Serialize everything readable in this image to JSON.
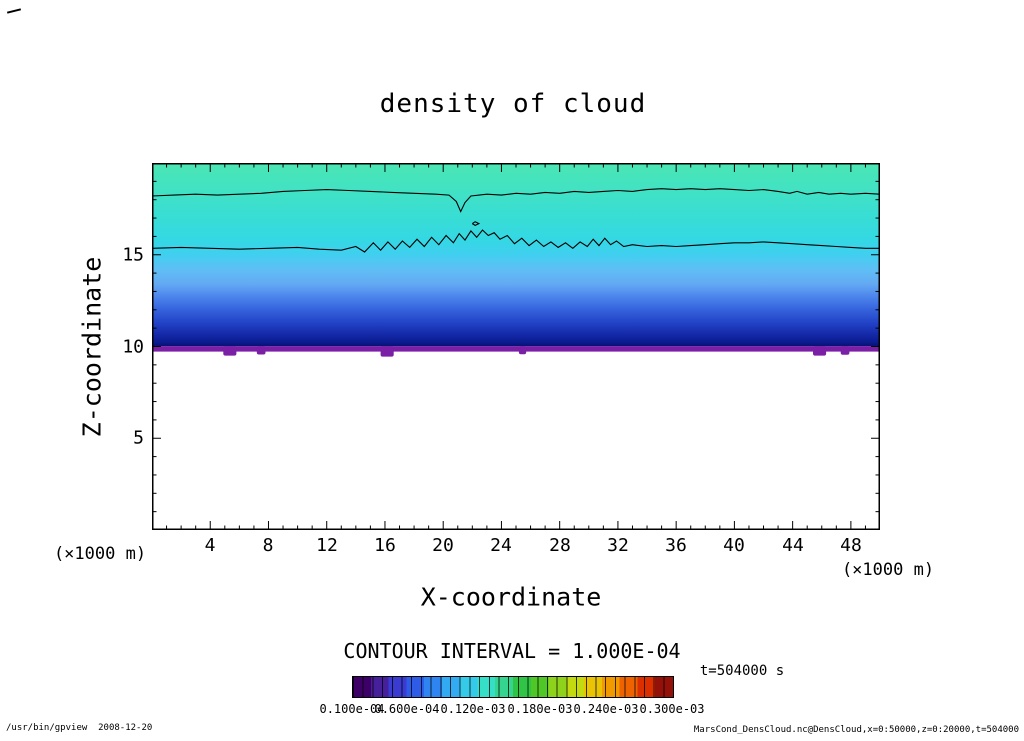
{
  "chart_data": {
    "type": "heatmap",
    "title": "density of cloud",
    "xlabel": "X-coordinate",
    "ylabel": "Z-coordinate",
    "x_unit_left": "(×1000 m)",
    "x_unit_right": "(×1000 m)",
    "contour_interval_text": "CONTOUR INTERVAL = 1.000E-04",
    "time_label": "t=504000 s",
    "axes": {
      "xlim": [
        0,
        50
      ],
      "zlim": [
        0,
        20
      ],
      "x_major_ticks": [
        4,
        8,
        12,
        16,
        20,
        24,
        28,
        32,
        36,
        40,
        44,
        48
      ],
      "x_tick_labels": [
        "4",
        "8",
        "12",
        "16",
        "20",
        "24",
        "28",
        "32",
        "36",
        "40",
        "44",
        "48"
      ],
      "x_minor_step": 1,
      "y_major_ticks": [
        5,
        10,
        15
      ],
      "y_tick_labels": [
        "5",
        "10",
        "15"
      ],
      "y_minor_step": 1,
      "grid": false
    },
    "field": {
      "description": "cloud density fill; colored cloud layer spans z≈9.7–20 (×1000 m) over full x range 0–50, white (no cloud) below",
      "gradient_stops": [
        {
          "z": 20.0,
          "color": "#4BE6B4"
        },
        {
          "z": 18.5,
          "color": "#41E2C4"
        },
        {
          "z": 17.0,
          "color": "#38DDD5"
        },
        {
          "z": 15.8,
          "color": "#34D8E4"
        },
        {
          "z": 15.0,
          "color": "#41CFF0"
        },
        {
          "z": 14.2,
          "color": "#5FBFF5"
        },
        {
          "z": 13.4,
          "color": "#64A9F3"
        },
        {
          "z": 12.7,
          "color": "#4B84EB"
        },
        {
          "z": 12.0,
          "color": "#3562DD"
        },
        {
          "z": 11.3,
          "color": "#2243C6"
        },
        {
          "z": 10.7,
          "color": "#152BAB"
        },
        {
          "z": 10.25,
          "color": "#0C1B90"
        },
        {
          "z": 10.02,
          "color": "#081274"
        }
      ],
      "base_band": {
        "z_top": 10.02,
        "z_bottom": 9.72,
        "color": "#7A1FA6",
        "blobs": [
          {
            "x0": 4.9,
            "x1": 5.8,
            "zb": 9.5
          },
          {
            "x0": 7.2,
            "x1": 7.8,
            "zb": 9.56
          },
          {
            "x0": 15.7,
            "x1": 16.6,
            "zb": 9.45
          },
          {
            "x0": 25.2,
            "x1": 25.7,
            "zb": 9.58
          },
          {
            "x0": 45.4,
            "x1": 46.3,
            "zb": 9.5
          },
          {
            "x0": 47.3,
            "x1": 47.9,
            "zb": 9.55
          }
        ]
      }
    },
    "contours": {
      "interval": 0.0001,
      "lines": [
        {
          "name": "upper",
          "points_xz": [
            [
              0,
              18.2
            ],
            [
              1.5,
              18.25
            ],
            [
              3,
              18.3
            ],
            [
              4.5,
              18.25
            ],
            [
              6,
              18.3
            ],
            [
              7.5,
              18.35
            ],
            [
              9,
              18.45
            ],
            [
              10.5,
              18.5
            ],
            [
              12,
              18.55
            ],
            [
              13.5,
              18.5
            ],
            [
              15,
              18.45
            ],
            [
              16.5,
              18.4
            ],
            [
              18,
              18.35
            ],
            [
              19.5,
              18.3
            ],
            [
              20.4,
              18.25
            ],
            [
              20.9,
              17.9
            ],
            [
              21.2,
              17.35
            ],
            [
              21.5,
              17.85
            ],
            [
              21.9,
              18.2
            ],
            [
              23,
              18.3
            ],
            [
              24,
              18.25
            ],
            [
              25,
              18.35
            ],
            [
              26,
              18.3
            ],
            [
              27,
              18.4
            ],
            [
              28,
              18.35
            ],
            [
              29,
              18.45
            ],
            [
              30,
              18.4
            ],
            [
              31,
              18.45
            ],
            [
              32,
              18.5
            ],
            [
              33,
              18.45
            ],
            [
              34,
              18.55
            ],
            [
              35,
              18.6
            ],
            [
              36,
              18.55
            ],
            [
              37,
              18.6
            ],
            [
              38,
              18.55
            ],
            [
              39,
              18.6
            ],
            [
              40,
              18.55
            ],
            [
              41,
              18.5
            ],
            [
              42,
              18.55
            ],
            [
              43,
              18.45
            ],
            [
              43.8,
              18.35
            ],
            [
              44.3,
              18.45
            ],
            [
              45,
              18.3
            ],
            [
              45.8,
              18.4
            ],
            [
              46.5,
              18.3
            ],
            [
              47.3,
              18.35
            ],
            [
              48,
              18.3
            ],
            [
              49,
              18.35
            ],
            [
              50,
              18.3
            ]
          ]
        },
        {
          "name": "middle",
          "points_xz": [
            [
              0,
              15.35
            ],
            [
              2,
              15.4
            ],
            [
              4,
              15.35
            ],
            [
              6,
              15.3
            ],
            [
              8,
              15.35
            ],
            [
              10,
              15.4
            ],
            [
              11.5,
              15.3
            ],
            [
              13,
              15.25
            ],
            [
              14,
              15.45
            ],
            [
              14.6,
              15.15
            ],
            [
              15.2,
              15.65
            ],
            [
              15.7,
              15.25
            ],
            [
              16.2,
              15.7
            ],
            [
              16.7,
              15.3
            ],
            [
              17.2,
              15.75
            ],
            [
              17.7,
              15.4
            ],
            [
              18.2,
              15.85
            ],
            [
              18.7,
              15.45
            ],
            [
              19.2,
              15.95
            ],
            [
              19.7,
              15.55
            ],
            [
              20.2,
              16.05
            ],
            [
              20.7,
              15.65
            ],
            [
              21.1,
              16.15
            ],
            [
              21.5,
              15.8
            ],
            [
              21.9,
              16.3
            ],
            [
              22.3,
              15.95
            ],
            [
              22.7,
              16.35
            ],
            [
              23.1,
              16.05
            ],
            [
              23.5,
              16.2
            ],
            [
              23.9,
              15.85
            ],
            [
              24.4,
              16.05
            ],
            [
              24.9,
              15.6
            ],
            [
              25.4,
              15.9
            ],
            [
              25.9,
              15.5
            ],
            [
              26.4,
              15.8
            ],
            [
              26.9,
              15.45
            ],
            [
              27.4,
              15.7
            ],
            [
              27.9,
              15.4
            ],
            [
              28.4,
              15.65
            ],
            [
              28.9,
              15.35
            ],
            [
              29.4,
              15.7
            ],
            [
              29.9,
              15.45
            ],
            [
              30.3,
              15.85
            ],
            [
              30.7,
              15.5
            ],
            [
              31.1,
              15.9
            ],
            [
              31.5,
              15.55
            ],
            [
              31.9,
              15.75
            ],
            [
              32.4,
              15.45
            ],
            [
              33,
              15.55
            ],
            [
              34,
              15.45
            ],
            [
              35,
              15.5
            ],
            [
              36,
              15.45
            ],
            [
              37,
              15.5
            ],
            [
              38,
              15.55
            ],
            [
              39,
              15.6
            ],
            [
              40,
              15.65
            ],
            [
              41,
              15.65
            ],
            [
              42,
              15.7
            ],
            [
              43,
              15.65
            ],
            [
              44,
              15.6
            ],
            [
              45,
              15.55
            ],
            [
              46,
              15.5
            ],
            [
              47,
              15.45
            ],
            [
              48,
              15.4
            ],
            [
              49,
              15.35
            ],
            [
              50,
              15.35
            ]
          ]
        },
        {
          "name": "closed-small",
          "points_xz": [
            [
              22.0,
              16.7
            ],
            [
              22.2,
              16.8
            ],
            [
              22.45,
              16.7
            ],
            [
              22.2,
              16.6
            ],
            [
              22.0,
              16.7
            ]
          ]
        }
      ]
    },
    "colorbar": {
      "vmin": 1e-05,
      "vmax": 0.0003,
      "tick_values": [
        1e-05,
        6e-05,
        0.00012,
        0.00018,
        0.00024,
        0.0003
      ],
      "tick_labels": [
        "0.100e-04",
        "0.600e-04",
        "0.120e-03",
        "0.180e-03",
        "0.240e-03",
        "0.300e-03"
      ],
      "cells": 33,
      "colors": [
        "#3C0066",
        "#46209B",
        "#3A3BD0",
        "#2F5CE6",
        "#2E84F0",
        "#33ABF2",
        "#35CBE8",
        "#36DFC8",
        "#35D48F",
        "#2FC445",
        "#4FC827",
        "#8ED21C",
        "#C4DA10",
        "#E8C404",
        "#F09A00",
        "#EE6200",
        "#DC2F00",
        "#941109"
      ],
      "border_color": "#000000"
    }
  },
  "footer": {
    "left": "/usr/bin/gpview  2008-12-20",
    "right": "MarsCond_DensCloud.nc@DensCloud,x=0:50000,z=0:20000,t=504000"
  }
}
